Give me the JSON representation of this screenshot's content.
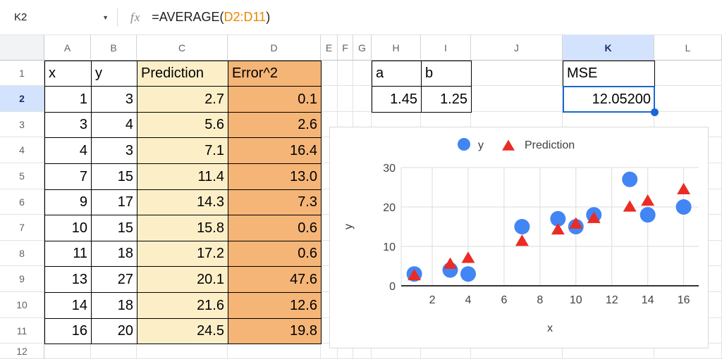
{
  "formula_bar": {
    "cell_ref": "K2",
    "fx_label": "fx",
    "formula_prefix": "=AVERAGE(",
    "formula_range": "D2:D11",
    "formula_suffix": ")"
  },
  "grid": {
    "columns": [
      "A",
      "B",
      "C",
      "D",
      "E",
      "F",
      "G",
      "H",
      "I",
      "J",
      "K",
      "L"
    ],
    "row_numbers": [
      "1",
      "2",
      "3",
      "4",
      "5",
      "6",
      "7",
      "8",
      "9",
      "10",
      "11",
      "12"
    ],
    "selected_column": "K",
    "selected_row": "2",
    "selected_cell": "K2"
  },
  "data_table": {
    "headers": [
      "x",
      "y",
      "Prediction",
      "Error^2"
    ],
    "rows": [
      [
        "1",
        "3",
        "2.7",
        "0.1"
      ],
      [
        "3",
        "4",
        "5.6",
        "2.6"
      ],
      [
        "4",
        "3",
        "7.1",
        "16.4"
      ],
      [
        "7",
        "15",
        "11.4",
        "13.0"
      ],
      [
        "9",
        "17",
        "14.3",
        "7.3"
      ],
      [
        "10",
        "15",
        "15.8",
        "0.6"
      ],
      [
        "11",
        "18",
        "17.2",
        "0.6"
      ],
      [
        "13",
        "27",
        "20.1",
        "47.6"
      ],
      [
        "14",
        "18",
        "21.6",
        "12.6"
      ],
      [
        "16",
        "20",
        "24.5",
        "19.8"
      ]
    ]
  },
  "params_table": {
    "headers": [
      "a",
      "b"
    ],
    "values": [
      "1.45",
      "1.25"
    ]
  },
  "mse": {
    "label": "MSE",
    "value": "12.05200"
  },
  "colors": {
    "prediction_col_fill": "#fcefc8",
    "error_col_fill": "#f5b577",
    "selected_header_fill": "#d3e3fd",
    "selection_blue": "#1967d2",
    "formula_range_orange": "#ea8600",
    "series_y_blue": "#4285f4",
    "series_prediction_red": "#ea2c24",
    "chart_grid": "#dadce0",
    "chart_axis": "#333333"
  },
  "chart_data": {
    "type": "scatter",
    "x": [
      1,
      3,
      4,
      7,
      9,
      10,
      11,
      13,
      14,
      16
    ],
    "series": [
      {
        "name": "y",
        "marker": "circle",
        "color": "#4285f4",
        "values": [
          3,
          4,
          3,
          15,
          17,
          15,
          18,
          27,
          18,
          20
        ]
      },
      {
        "name": "Prediction",
        "marker": "triangle",
        "color": "#ea2c24",
        "values": [
          2.7,
          5.6,
          7.1,
          11.4,
          14.3,
          15.8,
          17.2,
          20.1,
          21.6,
          24.5
        ]
      }
    ],
    "xlabel": "x",
    "ylabel": "y",
    "xticks": [
      2,
      4,
      6,
      8,
      10,
      12,
      14,
      16
    ],
    "yticks": [
      0,
      10,
      20,
      30
    ],
    "xlim": [
      0.27,
      16.84
    ],
    "ylim": [
      0,
      30
    ],
    "grid": true,
    "legend_position": "top"
  }
}
